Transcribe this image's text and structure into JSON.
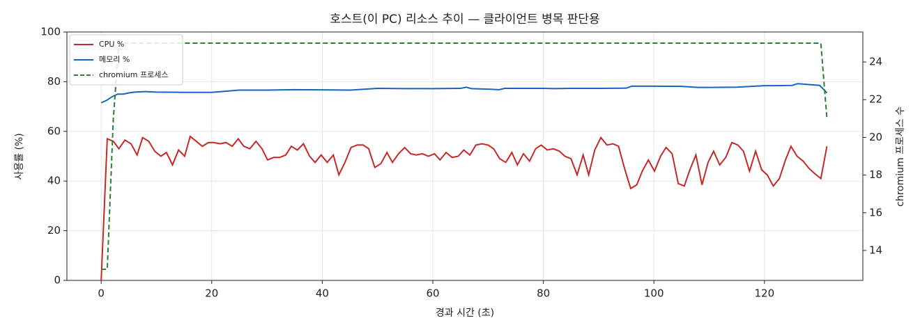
{
  "chart_data": {
    "type": "line",
    "title": "호스트(이 PC) 리소스 추이 — 클라이언트 병목 판단용",
    "x_label": "경과 시간 (초)",
    "y_label": "사용률 (%)",
    "y2_label": "chromium 프로세스 수",
    "xlim": [
      -6.2,
      137.8
    ],
    "xticks": [
      0,
      20,
      40,
      60,
      80,
      100,
      120
    ],
    "ylim": [
      0,
      100
    ],
    "yticks": [
      0,
      20,
      40,
      60,
      80,
      100
    ],
    "y2lim": [
      12.41,
      25.59
    ],
    "y2ticks": [
      14,
      16,
      18,
      20,
      22,
      24
    ],
    "grid": true,
    "legend": "upper left",
    "x": [
      0,
      1.1,
      2.2,
      3.2,
      4.3,
      5.4,
      6.5,
      7.5,
      8.6,
      9.7,
      10.8,
      11.8,
      12.9,
      14.0,
      15.1,
      16.1,
      17.2,
      18.3,
      19.4,
      20.4,
      21.5,
      22.6,
      23.7,
      24.8,
      25.8,
      26.9,
      28.0,
      29.1,
      30.1,
      31.2,
      32.3,
      33.4,
      34.4,
      35.5,
      36.6,
      37.7,
      38.7,
      39.8,
      40.9,
      42.0,
      43.0,
      44.1,
      45.2,
      46.3,
      47.4,
      48.4,
      49.5,
      50.6,
      51.7,
      52.7,
      53.8,
      54.9,
      56.0,
      57.0,
      58.1,
      59.2,
      60.3,
      61.3,
      62.4,
      63.5,
      64.6,
      65.6,
      66.7,
      67.8,
      68.9,
      70.0,
      71.0,
      72.1,
      73.2,
      74.3,
      75.3,
      76.4,
      77.5,
      78.6,
      79.6,
      80.7,
      81.8,
      82.9,
      83.9,
      85.0,
      86.1,
      87.2,
      88.2,
      89.3,
      90.4,
      91.5,
      92.6,
      93.6,
      94.7,
      95.8,
      96.9,
      97.9,
      99.0,
      100.1,
      101.2,
      102.2,
      103.3,
      104.4,
      105.5,
      106.5,
      107.6,
      108.7,
      109.8,
      110.8,
      111.9,
      113.0,
      114.1,
      115.2,
      116.2,
      117.3,
      118.4,
      119.5,
      120.5,
      121.6,
      122.7,
      123.8,
      124.8,
      125.9,
      127.0,
      128.1,
      129.1,
      130.2,
      131.3
    ],
    "series": [
      {
        "name": "CPU %",
        "color": "#c62828",
        "values": [
          0,
          57,
          56,
          53,
          56.5,
          55,
          50.5,
          57.5,
          56,
          52,
          50,
          51.5,
          46.5,
          52.5,
          50,
          58,
          56,
          54,
          55.5,
          55.5,
          55,
          55.5,
          54,
          57,
          54,
          53,
          56,
          53,
          48.5,
          49.5,
          49.5,
          50.5,
          54,
          52.5,
          55,
          50,
          47.5,
          50.5,
          47.5,
          50.5,
          42.5,
          47.5,
          53.5,
          54.5,
          54.5,
          53,
          45.5,
          47,
          51.5,
          47.5,
          51,
          53.5,
          51,
          50.5,
          51,
          50,
          51,
          48.5,
          51.5,
          49.5,
          50,
          52.5,
          50.5,
          54.5,
          55,
          54.5,
          53,
          49,
          47.5,
          51.5,
          46.5,
          51,
          48,
          53,
          54.5,
          52.5,
          53,
          52,
          50,
          49,
          42.5,
          50.5,
          42.5,
          52.5,
          57.5,
          54.5,
          55,
          54,
          45,
          37,
          38.5,
          44,
          48.5,
          44,
          50,
          53.5,
          51,
          39,
          38,
          44.5,
          50.5,
          38.5,
          47.5,
          52,
          46.5,
          49.5,
          55.5,
          54.5,
          52,
          44,
          52,
          44.5,
          42.5,
          38,
          41,
          48.5,
          54,
          50,
          48,
          45,
          43,
          41,
          54
        ]
      },
      {
        "name": "메모리 %",
        "color": "#1565c0",
        "x": [
          0,
          1,
          2,
          3,
          4,
          5,
          6,
          8,
          10,
          15,
          20,
          25,
          30,
          35,
          40,
          45,
          50,
          55,
          60,
          65,
          66,
          67,
          70,
          72,
          73,
          80,
          82,
          85,
          90,
          95,
          96,
          100,
          105,
          108,
          110,
          115,
          120,
          122,
          125,
          126,
          130,
          131.3
        ],
        "values": [
          71.5,
          72.5,
          74,
          75,
          75,
          75.5,
          75.8,
          76,
          75.8,
          75.7,
          75.7,
          76.6,
          76.6,
          76.8,
          76.7,
          76.6,
          77.3,
          77.2,
          77.2,
          77.3,
          77.8,
          77.2,
          77.0,
          76.8,
          77.3,
          77.3,
          77.2,
          77.3,
          77.3,
          77.4,
          78.2,
          78.2,
          78.1,
          77.7,
          77.7,
          77.8,
          78.4,
          78.4,
          78.5,
          79.2,
          78.5,
          75.5
        ]
      },
      {
        "name": "chromium 프로세스",
        "color": "#2e7d32",
        "linestyle": "dashed",
        "axis": "y2",
        "x": [
          0,
          1.1,
          2.2,
          3.2,
          130.2,
          131.3
        ],
        "values": [
          13,
          13,
          21,
          25,
          25,
          21
        ]
      }
    ]
  }
}
